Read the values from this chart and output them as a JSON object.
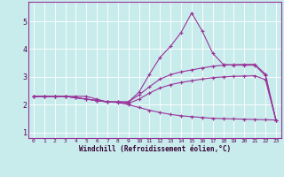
{
  "xlabel": "Windchill (Refroidissement éolien,°C)",
  "bg_color": "#c8ecec",
  "line_color": "#993399",
  "grid_color": "#aadddd",
  "spine_color": "#993399",
  "xlim": [
    -0.5,
    23.5
  ],
  "ylim": [
    0.8,
    5.7
  ],
  "xticks": [
    0,
    1,
    2,
    3,
    4,
    5,
    6,
    7,
    8,
    9,
    10,
    11,
    12,
    13,
    14,
    15,
    16,
    17,
    18,
    19,
    20,
    21,
    22,
    23
  ],
  "yticks": [
    1,
    2,
    3,
    4,
    5
  ],
  "curve1_x": [
    0,
    1,
    2,
    3,
    4,
    5,
    6,
    7,
    8,
    9,
    10,
    11,
    12,
    13,
    14,
    15,
    16,
    17,
    18,
    19,
    20,
    21,
    22,
    23
  ],
  "curve1_y": [
    2.3,
    2.3,
    2.3,
    2.3,
    2.3,
    2.3,
    2.2,
    2.1,
    2.1,
    2.1,
    2.45,
    3.1,
    3.7,
    4.1,
    4.6,
    5.3,
    4.65,
    3.85,
    3.45,
    3.42,
    3.42,
    3.42,
    3.05,
    1.45
  ],
  "curve2_x": [
    0,
    1,
    2,
    3,
    4,
    5,
    6,
    7,
    8,
    9,
    10,
    11,
    12,
    13,
    14,
    15,
    16,
    17,
    18,
    19,
    20,
    21,
    22,
    23
  ],
  "curve2_y": [
    2.3,
    2.3,
    2.3,
    2.3,
    2.25,
    2.2,
    2.15,
    2.1,
    2.1,
    2.1,
    2.35,
    2.65,
    2.92,
    3.08,
    3.18,
    3.25,
    3.32,
    3.38,
    3.42,
    3.44,
    3.45,
    3.45,
    3.1,
    1.45
  ],
  "curve3_x": [
    0,
    1,
    2,
    3,
    4,
    5,
    6,
    7,
    8,
    9,
    10,
    11,
    12,
    13,
    14,
    15,
    16,
    17,
    18,
    19,
    20,
    21,
    22,
    23
  ],
  "curve3_y": [
    2.3,
    2.3,
    2.3,
    2.3,
    2.25,
    2.2,
    2.15,
    2.1,
    2.1,
    2.05,
    2.2,
    2.42,
    2.6,
    2.72,
    2.8,
    2.86,
    2.92,
    2.97,
    3.0,
    3.02,
    3.03,
    3.04,
    2.9,
    1.45
  ],
  "curve4_x": [
    0,
    1,
    2,
    3,
    4,
    5,
    6,
    7,
    8,
    9,
    10,
    11,
    12,
    13,
    14,
    15,
    16,
    17,
    18,
    19,
    20,
    21,
    22,
    23
  ],
  "curve4_y": [
    2.3,
    2.3,
    2.3,
    2.3,
    2.25,
    2.2,
    2.15,
    2.1,
    2.08,
    2.0,
    1.9,
    1.8,
    1.72,
    1.65,
    1.6,
    1.57,
    1.54,
    1.51,
    1.5,
    1.49,
    1.48,
    1.47,
    1.46,
    1.45
  ]
}
